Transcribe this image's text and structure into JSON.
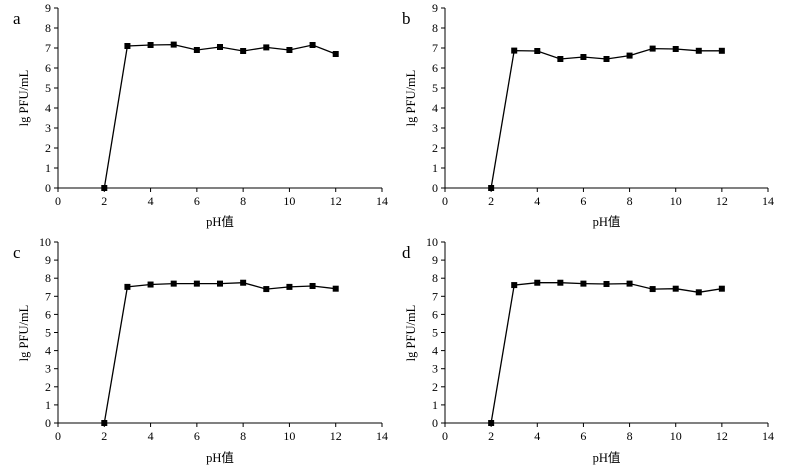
{
  "figure": {
    "background": "#ffffff",
    "line_color": "#000000"
  },
  "chart_data": [
    {
      "panel": "a",
      "type": "line",
      "xlabel": "pH值",
      "ylabel": "lg PFU/mL",
      "xlim": [
        0,
        14
      ],
      "ylim": [
        0,
        9
      ],
      "xticks": [
        0,
        2,
        4,
        6,
        8,
        10,
        12,
        14
      ],
      "yticks": [
        0,
        1,
        2,
        3,
        4,
        5,
        6,
        7,
        8,
        9
      ],
      "grid": false,
      "marker": "square",
      "series": [
        {
          "x": [
            2,
            3,
            4,
            5,
            6,
            7,
            8,
            9,
            10,
            11,
            12
          ],
          "y": [
            0,
            7.1,
            7.15,
            7.17,
            6.9,
            7.05,
            6.85,
            7.03,
            6.9,
            7.15,
            6.7
          ]
        }
      ]
    },
    {
      "panel": "b",
      "type": "line",
      "xlabel": "pH值",
      "ylabel": "lg PFU/mL",
      "xlim": [
        0,
        14
      ],
      "ylim": [
        0,
        9
      ],
      "xticks": [
        0,
        2,
        4,
        6,
        8,
        10,
        12,
        14
      ],
      "yticks": [
        0,
        1,
        2,
        3,
        4,
        5,
        6,
        7,
        8,
        9
      ],
      "grid": false,
      "marker": "square",
      "series": [
        {
          "x": [
            2,
            3,
            4,
            5,
            6,
            7,
            8,
            9,
            10,
            11,
            12
          ],
          "y": [
            0,
            6.87,
            6.85,
            6.45,
            6.55,
            6.45,
            6.62,
            6.97,
            6.95,
            6.86,
            6.86
          ]
        }
      ]
    },
    {
      "panel": "c",
      "type": "line",
      "xlabel": "pH值",
      "ylabel": "lg PFU/mL",
      "xlim": [
        0,
        14
      ],
      "ylim": [
        0,
        10
      ],
      "xticks": [
        0,
        2,
        4,
        6,
        8,
        10,
        12,
        14
      ],
      "yticks": [
        0,
        1,
        2,
        3,
        4,
        5,
        6,
        7,
        8,
        9,
        10
      ],
      "grid": false,
      "marker": "square",
      "series": [
        {
          "x": [
            2,
            3,
            4,
            5,
            6,
            7,
            8,
            9,
            10,
            11,
            12
          ],
          "y": [
            0,
            7.52,
            7.65,
            7.7,
            7.7,
            7.7,
            7.75,
            7.4,
            7.52,
            7.57,
            7.42
          ]
        }
      ]
    },
    {
      "panel": "d",
      "type": "line",
      "xlabel": "pH值",
      "ylabel": "lg PFU/mL",
      "xlim": [
        0,
        14
      ],
      "ylim": [
        0,
        10
      ],
      "xticks": [
        0,
        2,
        4,
        6,
        8,
        10,
        12,
        14
      ],
      "yticks": [
        0,
        1,
        2,
        3,
        4,
        5,
        6,
        7,
        8,
        9,
        10
      ],
      "grid": false,
      "marker": "square",
      "series": [
        {
          "x": [
            2,
            3,
            4,
            5,
            6,
            7,
            8,
            9,
            10,
            11,
            12
          ],
          "y": [
            0,
            7.62,
            7.75,
            7.75,
            7.7,
            7.68,
            7.7,
            7.4,
            7.42,
            7.22,
            7.42
          ]
        }
      ]
    }
  ]
}
